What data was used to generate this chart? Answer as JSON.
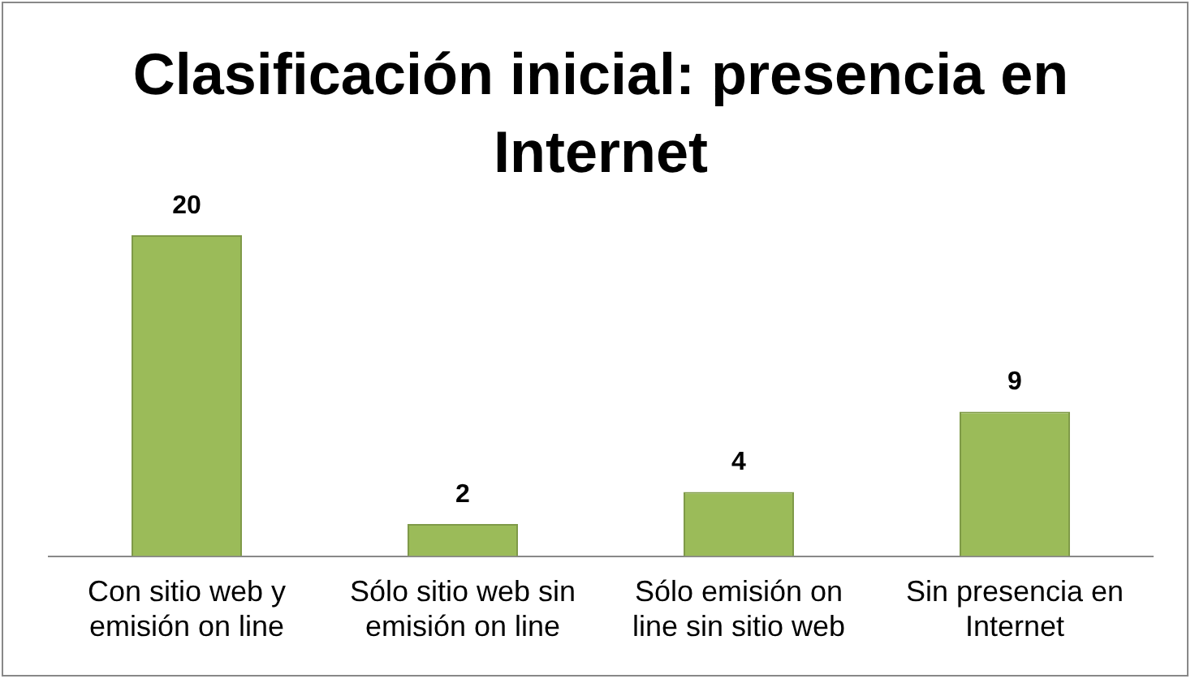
{
  "chart_data": {
    "type": "bar",
    "title": "Clasificación inicial: presencia en Internet",
    "categories": [
      "Con sitio web y emisión on line",
      "Sólo sitio web sin emisión on line",
      "Sólo emisión on line sin sitio web",
      "Sin presencia en Internet"
    ],
    "values": [
      20,
      2,
      4,
      9
    ],
    "color": "#9bbb59",
    "data_labels": true,
    "grid": false,
    "legend": false
  }
}
